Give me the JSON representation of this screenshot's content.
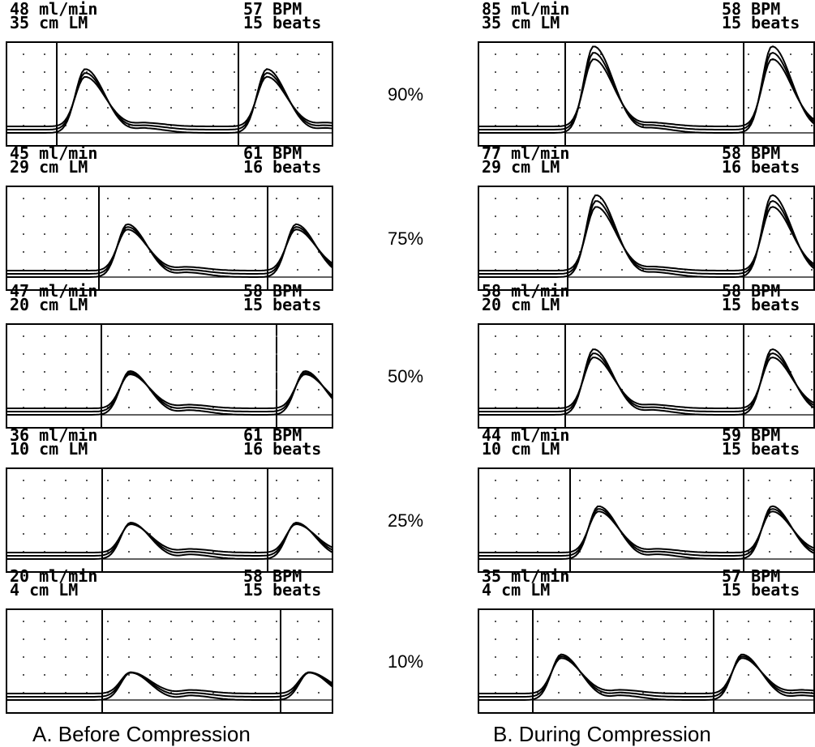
{
  "levels": [
    "90%",
    "75%",
    "50%",
    "25%",
    "10%"
  ],
  "columns": [
    {
      "caption": "A. Before Compression",
      "panels": [
        {
          "flow": "48 ml/min",
          "length": "35 cm LM",
          "rate": "57 BPM",
          "beats": "15 beats"
        },
        {
          "flow": "45 ml/min",
          "length": "29 cm LM",
          "rate": "61 BPM",
          "beats": "16 beats"
        },
        {
          "flow": "47 ml/min",
          "length": "20 cm LM",
          "rate": "58 BPM",
          "beats": "15 beats"
        },
        {
          "flow": "36 ml/min",
          "length": "10 cm LM",
          "rate": "61 BPM",
          "beats": "16 beats"
        },
        {
          "flow": "20 ml/min",
          "length": "4 cm LM",
          "rate": "58 BPM",
          "beats": "15 beats"
        }
      ]
    },
    {
      "caption": "B. During Compression",
      "panels": [
        {
          "flow": "85 ml/min",
          "length": "35 cm LM",
          "rate": "58 BPM",
          "beats": "15 beats"
        },
        {
          "flow": "77 ml/min",
          "length": "29 cm LM",
          "rate": "58 BPM",
          "beats": "16 beats"
        },
        {
          "flow": "58 ml/min",
          "length": "20 cm LM",
          "rate": "58 BPM",
          "beats": "15 beats"
        },
        {
          "flow": "44 ml/min",
          "length": "10 cm LM",
          "rate": "59 BPM",
          "beats": "15 beats"
        },
        {
          "flow": "35 ml/min",
          "length": "4 cm LM",
          "rate": "57 BPM",
          "beats": "15 beats"
        }
      ]
    }
  ]
}
